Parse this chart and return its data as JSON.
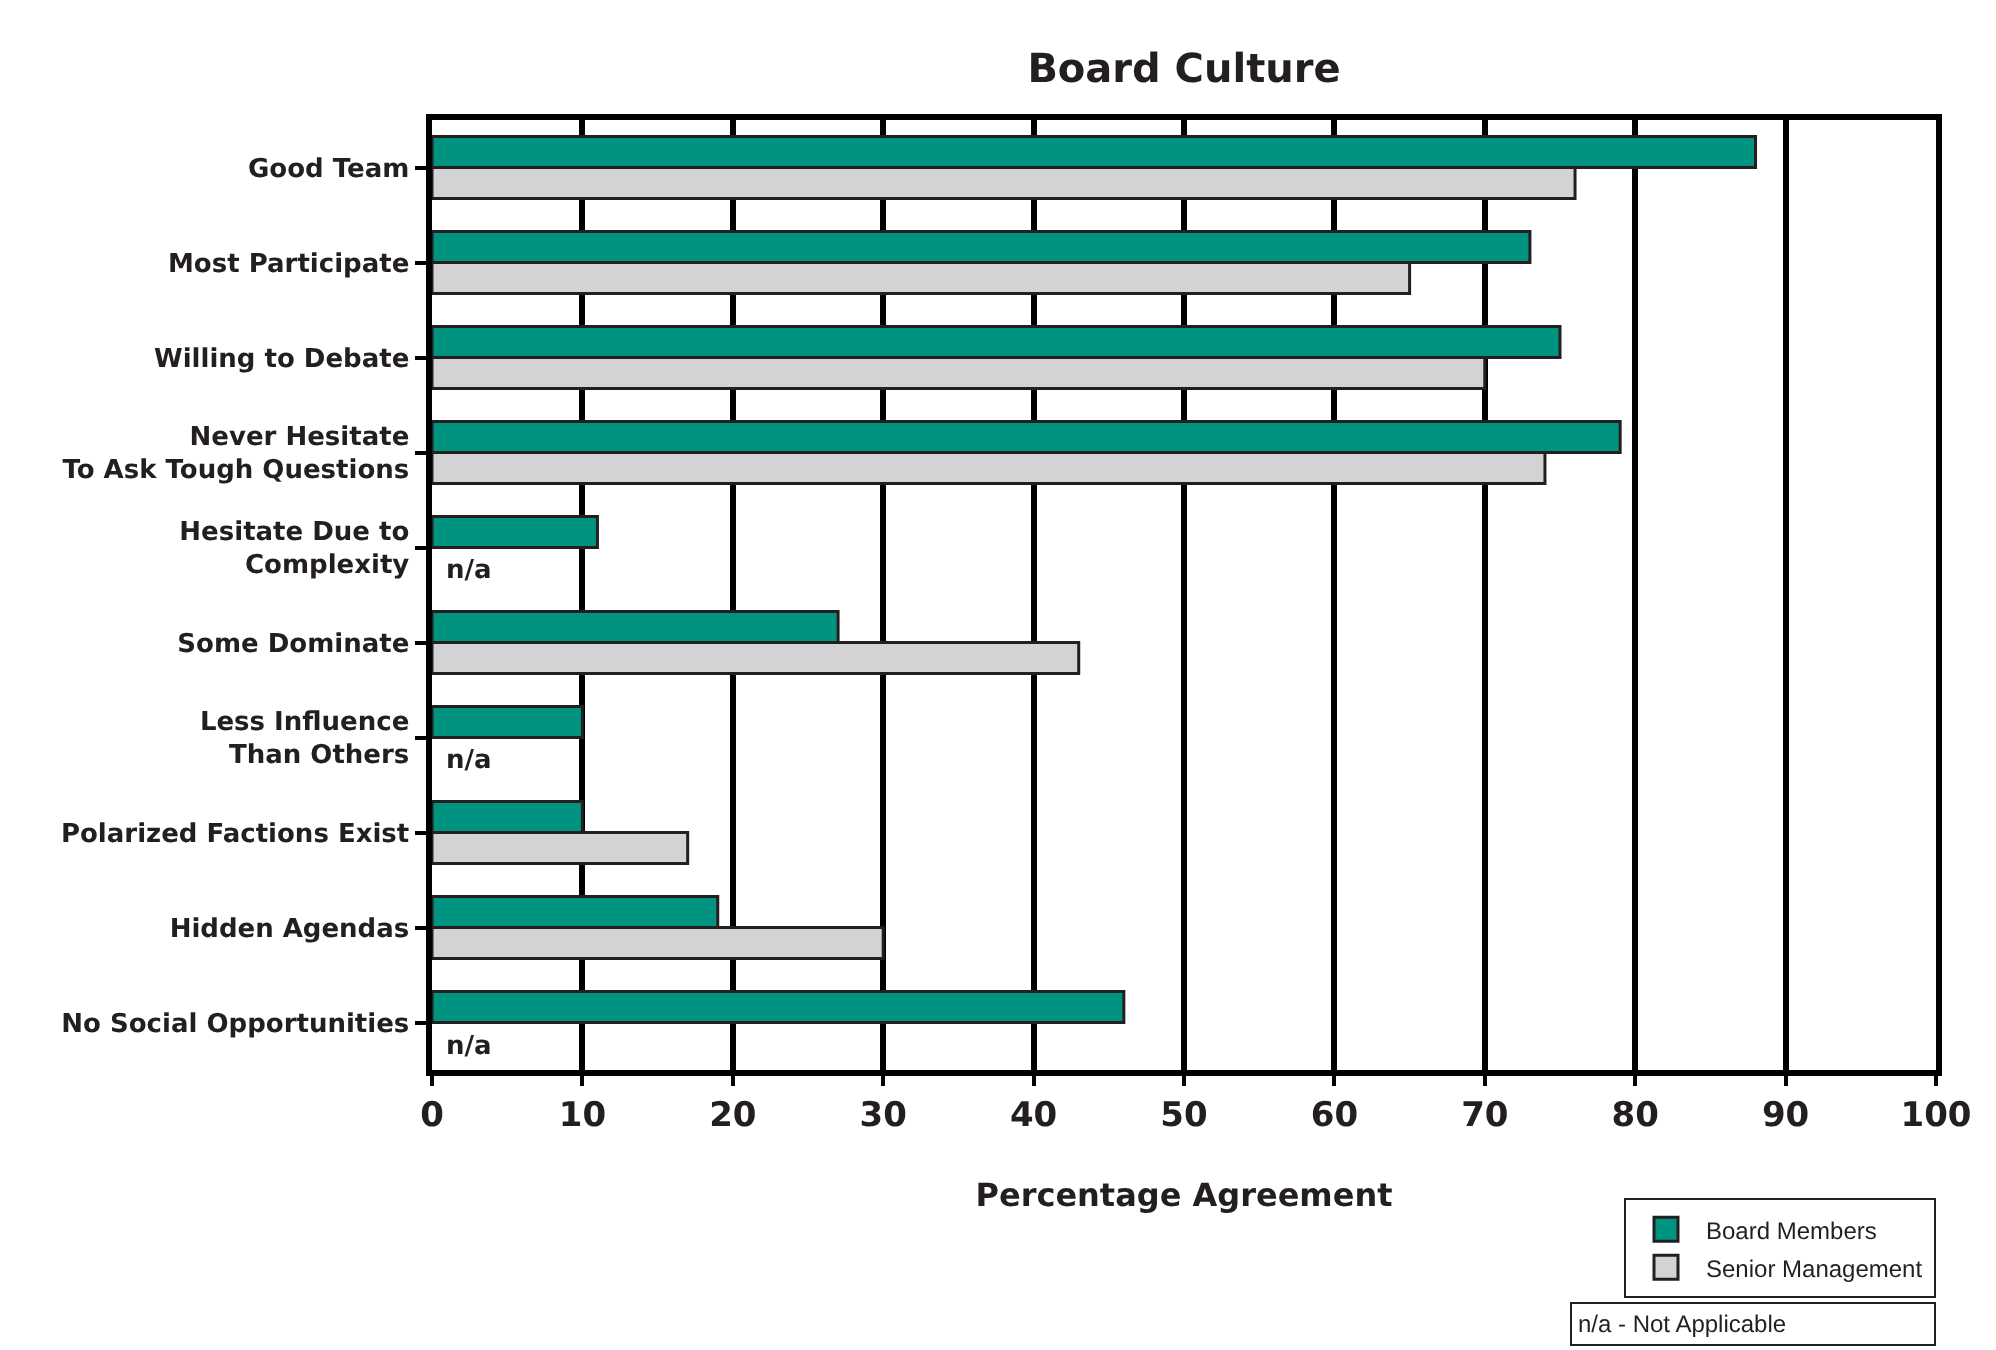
{
  "chart_data": {
    "type": "bar",
    "orientation": "horizontal",
    "title": "Board Culture",
    "xlabel": "Percentage Agreement",
    "categories": [
      "Good Team",
      "Most Participate",
      "Willing to Debate",
      "Never Hesitate\nTo Ask Tough Questions",
      "Hesitate Due to\nComplexity",
      "Some Dominate",
      "Less Influence\nThan Others",
      "Polarized Factions Exist",
      "Hidden Agendas",
      "No Social Opportunities"
    ],
    "series": [
      {
        "name": "Board Members",
        "color": "#009480",
        "values": [
          88,
          73,
          75,
          79,
          11,
          27,
          10,
          10,
          19,
          46
        ]
      },
      {
        "name": "Senior Management",
        "color": "#d3d3d5",
        "values": [
          76,
          65,
          70,
          74,
          null,
          43,
          null,
          17,
          30,
          null
        ]
      }
    ],
    "xlim": [
      0,
      100
    ],
    "xticks": [
      0,
      10,
      20,
      30,
      40,
      50,
      60,
      70,
      80,
      90,
      100
    ],
    "grid": "x",
    "legend": "bottom right",
    "annotations": [
      {
        "text": "n/a",
        "y": "Hesitate Due to\nComplexity"
      },
      {
        "text": "n/a",
        "y": "Less Influence\nThan Others"
      },
      {
        "text": "n/a",
        "y": "No Social Opportunities"
      },
      "n/a - Not Applicable"
    ]
  }
}
